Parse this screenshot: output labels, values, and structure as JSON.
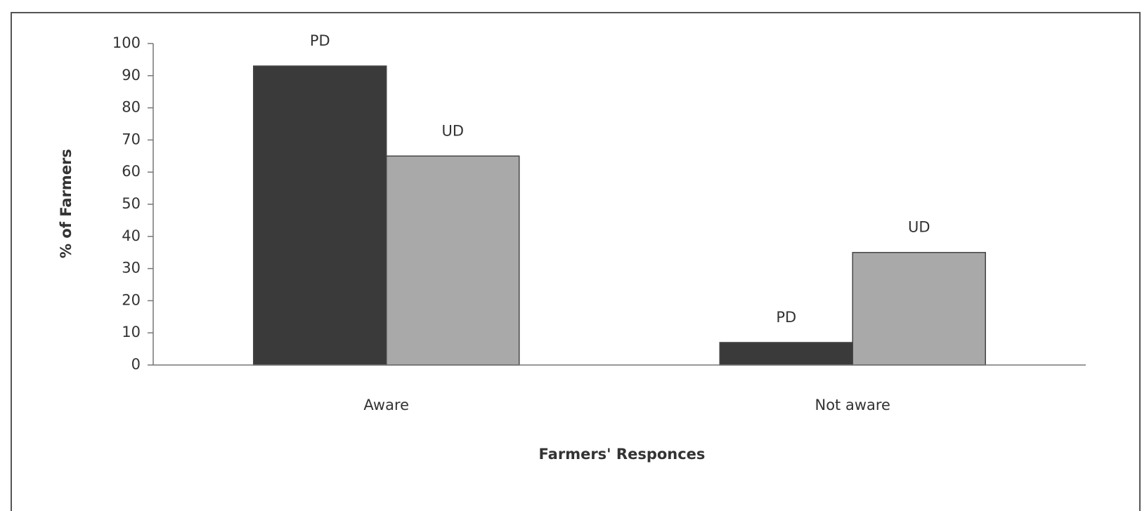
{
  "chart_data": {
    "type": "bar",
    "x_label": "Farmers' Responces",
    "y_label": "% of Farmers",
    "categories": [
      "Aware",
      "Not aware"
    ],
    "series": [
      {
        "name": "PD",
        "color": "#3a3a3a",
        "values": [
          93,
          7
        ]
      },
      {
        "name": "UD",
        "color": "#a9a9a9",
        "values": [
          65,
          35
        ]
      }
    ],
    "ylim": [
      0,
      100
    ],
    "yticks": [
      0,
      10,
      20,
      30,
      40,
      50,
      60,
      70,
      80,
      90,
      100
    ],
    "grid": false
  }
}
